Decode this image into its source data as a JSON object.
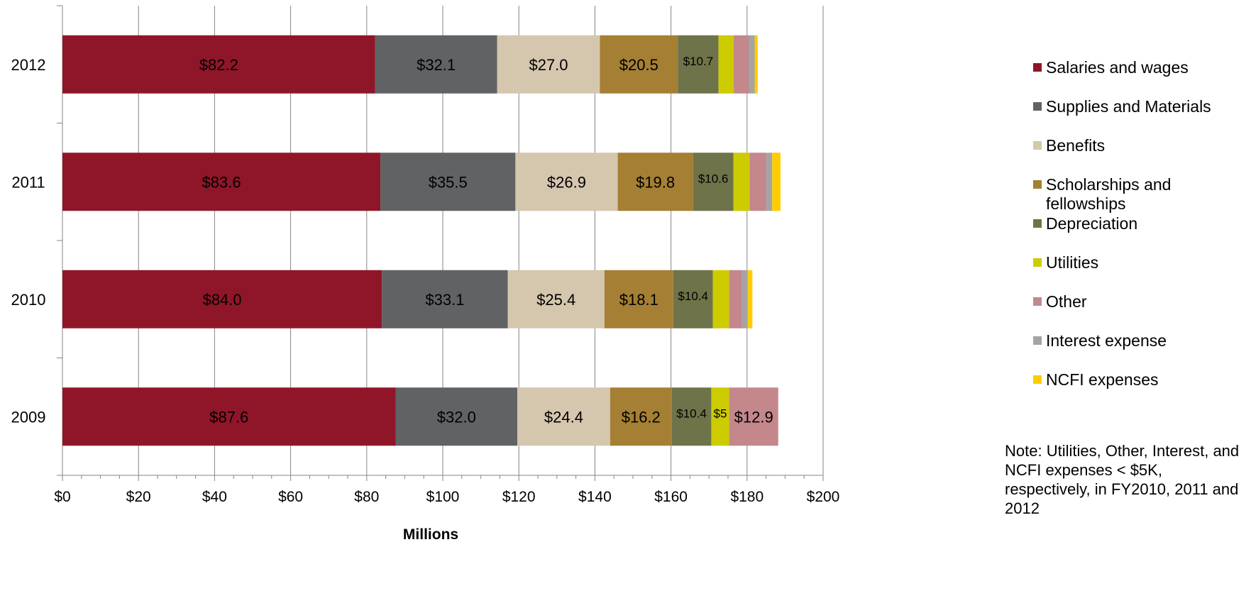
{
  "chart_data": {
    "type": "bar",
    "orientation": "horizontal",
    "stacked": true,
    "categories": [
      "2012",
      "2011",
      "2010",
      "2009"
    ],
    "xlabel": "Millions",
    "ylabel": "",
    "xlim": [
      0,
      200
    ],
    "xticks": [
      0,
      20,
      40,
      60,
      80,
      100,
      120,
      140,
      160,
      180,
      200
    ],
    "xtick_labels": [
      "$0",
      "$20",
      "$40",
      "$60",
      "$80",
      "$100",
      "$120",
      "$140",
      "$160",
      "$180",
      "$200"
    ],
    "grid": "vertical",
    "legend_position": "right",
    "series": [
      {
        "name": "Salaries and wages",
        "color": "#8f1628",
        "values": [
          82.2,
          83.6,
          84.0,
          87.6
        ],
        "labels": [
          "$82.2",
          "$83.6",
          "$84.0",
          "$87.6"
        ]
      },
      {
        "name": "Supplies and Materials",
        "color": "#606264",
        "values": [
          32.1,
          35.5,
          33.1,
          32.0
        ],
        "labels": [
          "$32.1",
          "$35.5",
          "$33.1",
          "$32.0"
        ]
      },
      {
        "name": "Benefits",
        "color": "#d5c6ae",
        "values": [
          27.0,
          26.9,
          25.4,
          24.4
        ],
        "labels": [
          "$27.0",
          "$26.9",
          "$25.4",
          "$24.4"
        ]
      },
      {
        "name": "Scholarships and fellowships",
        "color": "#a57f33",
        "values": [
          20.5,
          19.8,
          18.1,
          16.2
        ],
        "labels": [
          "$20.5",
          "$19.8",
          "$18.1",
          "$16.2"
        ]
      },
      {
        "name": "Depreciation",
        "color": "#6f7349",
        "values": [
          10.7,
          10.6,
          10.4,
          10.4
        ],
        "labels": [
          "$10.7",
          "$10.6",
          "$10.4",
          "$10.4"
        ]
      },
      {
        "name": "Utilities",
        "color": "#cccc00",
        "values": [
          4.0,
          4.3,
          4.3,
          4.7
        ],
        "labels": [
          "",
          "",
          "",
          "$5"
        ]
      },
      {
        "name": "Other",
        "color": "#c4878c",
        "values": [
          4.0,
          4.4,
          3.4,
          12.9
        ],
        "labels": [
          "",
          "",
          "",
          "$12.9"
        ]
      },
      {
        "name": "Interest expense",
        "color": "#a2a4a6",
        "values": [
          1.5,
          1.5,
          1.5,
          0
        ],
        "labels": [
          "",
          "",
          "",
          ""
        ]
      },
      {
        "name": "NCFI expenses",
        "color": "#ffcc00",
        "values": [
          0.8,
          2.2,
          1.2,
          0
        ],
        "labels": [
          "",
          "",
          "",
          ""
        ]
      }
    ]
  },
  "note": "Note: Utilities, Other, Interest, and NCFI expenses < $5K, respectively, in FY2010, 2011 and 2012"
}
